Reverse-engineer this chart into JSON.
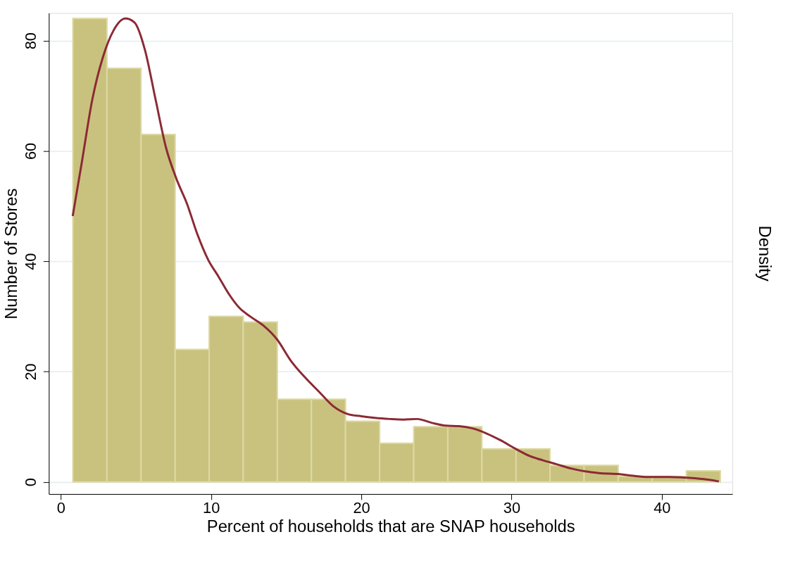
{
  "chart_data": {
    "type": "histogram",
    "xlabel": "Percent of households that are SNAP households",
    "ylabel": "Number of Stores",
    "y2label": "Density",
    "xlim": [
      -0.8,
      44.7
    ],
    "xticks": [
      0,
      10,
      20,
      30,
      40
    ],
    "ylim": [
      -2.2,
      85
    ],
    "yticks": [
      0,
      20,
      40,
      60,
      80
    ],
    "grid": "y",
    "series": [
      {
        "color": "#c9c27e",
        "bins": [
          0.8,
          3.07,
          5.34,
          7.61,
          9.87,
          12.14,
          14.41,
          16.68,
          18.95,
          21.22,
          23.49,
          25.76,
          28.03,
          30.3,
          32.56,
          34.83,
          37.1,
          39.37,
          41.64,
          43.9
        ],
        "values": [
          84,
          75,
          63,
          24,
          30,
          29,
          15,
          15,
          11,
          7,
          10,
          10,
          6,
          6,
          3,
          3,
          1,
          1,
          2
        ]
      },
      {
        "type": "line",
        "color": "#8b2a35",
        "x": [
          0.79,
          1.4,
          2.1,
          2.8,
          3.5,
          4.3,
          4.9,
          5.6,
          6.3,
          7.0,
          7.7,
          8.4,
          9.1,
          9.8,
          10.5,
          11.2,
          11.9,
          12.6,
          13.5,
          14.4,
          15.3,
          16.3,
          17.2,
          18.1,
          19.1,
          20,
          20.9,
          21.9,
          22.8,
          23.7,
          24.7,
          25.6,
          26.5,
          27.4,
          28.4,
          29.3,
          30.2,
          31.2,
          32.1,
          33,
          34,
          34.9,
          35.8,
          37.2,
          38.1,
          39.1,
          40.5,
          41.4,
          42.8,
          43.8
        ],
        "values": [
          48.2,
          58,
          69.4,
          77,
          81.8,
          84,
          83.3,
          78.3,
          69.4,
          60.6,
          54.9,
          50.4,
          44.8,
          40.3,
          37.2,
          34,
          31.5,
          30,
          28.3,
          25.8,
          22,
          18.8,
          16.3,
          13.8,
          12.3,
          11.9,
          11.6,
          11.4,
          11.3,
          11.4,
          10.7,
          10.2,
          10.1,
          9.7,
          8.7,
          7.5,
          6.1,
          4.7,
          3.9,
          3.2,
          2.4,
          1.9,
          1.6,
          1.4,
          1.1,
          0.9,
          0.9,
          0.8,
          0.5,
          0.1
        ]
      }
    ]
  }
}
